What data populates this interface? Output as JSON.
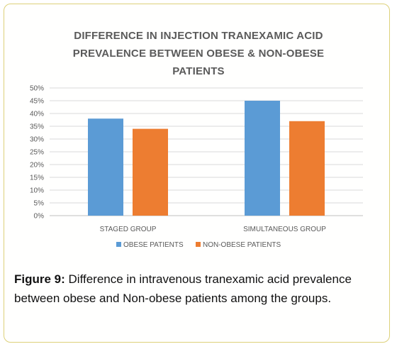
{
  "chart_data": {
    "type": "bar",
    "title_lines": [
      "DIFFERENCE IN INJECTION TRANEXAMIC ACID",
      "PREVALENCE  BETWEEN OBESE & NON-OBESE",
      "PATIENTS"
    ],
    "categories": [
      "STAGED GROUP",
      "SIMULTANEOUS GROUP"
    ],
    "series": [
      {
        "name": "OBESE PATIENTS",
        "values": [
          38,
          45
        ],
        "color": "#5b9bd5"
      },
      {
        "name": "NON-OBESE PATIENTS",
        "values": [
          34,
          37
        ],
        "color": "#ed7d31"
      }
    ],
    "ylim": [
      0,
      50
    ],
    "yticks": [
      0,
      5,
      10,
      15,
      20,
      25,
      30,
      35,
      40,
      45,
      50
    ],
    "ytick_suffix": "%",
    "grid": true,
    "legend_position": "bottom"
  },
  "caption": {
    "label": "Figure 9:",
    "text": " Difference in intravenous tranexamic acid prevalence between obese and Non-obese patients among the groups."
  }
}
